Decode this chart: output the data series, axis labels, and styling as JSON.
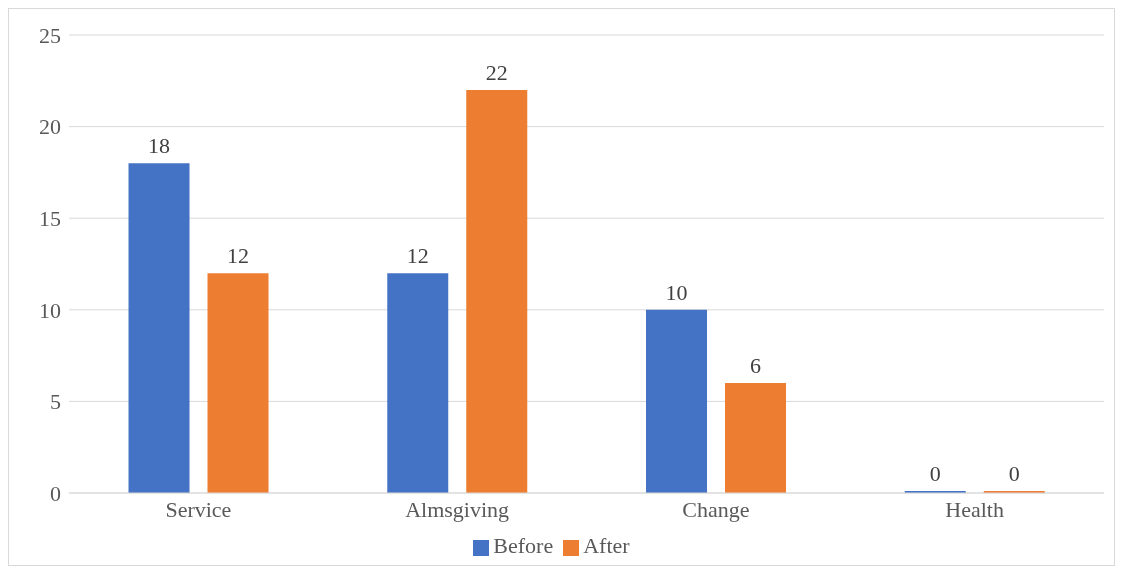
{
  "chart_data": {
    "type": "bar",
    "categories": [
      "Service",
      "Almsgiving",
      "Change",
      "Health"
    ],
    "series": [
      {
        "name": "Before",
        "color": "#4472c4",
        "values": [
          18,
          12,
          10,
          0
        ]
      },
      {
        "name": "After",
        "color": "#ed7d31",
        "values": [
          12,
          22,
          6,
          0
        ]
      }
    ],
    "ylim": [
      0,
      25
    ],
    "yticks": [
      0,
      5,
      10,
      15,
      20,
      25
    ],
    "grid": "y",
    "legend": "bottom",
    "data_labels": true
  }
}
